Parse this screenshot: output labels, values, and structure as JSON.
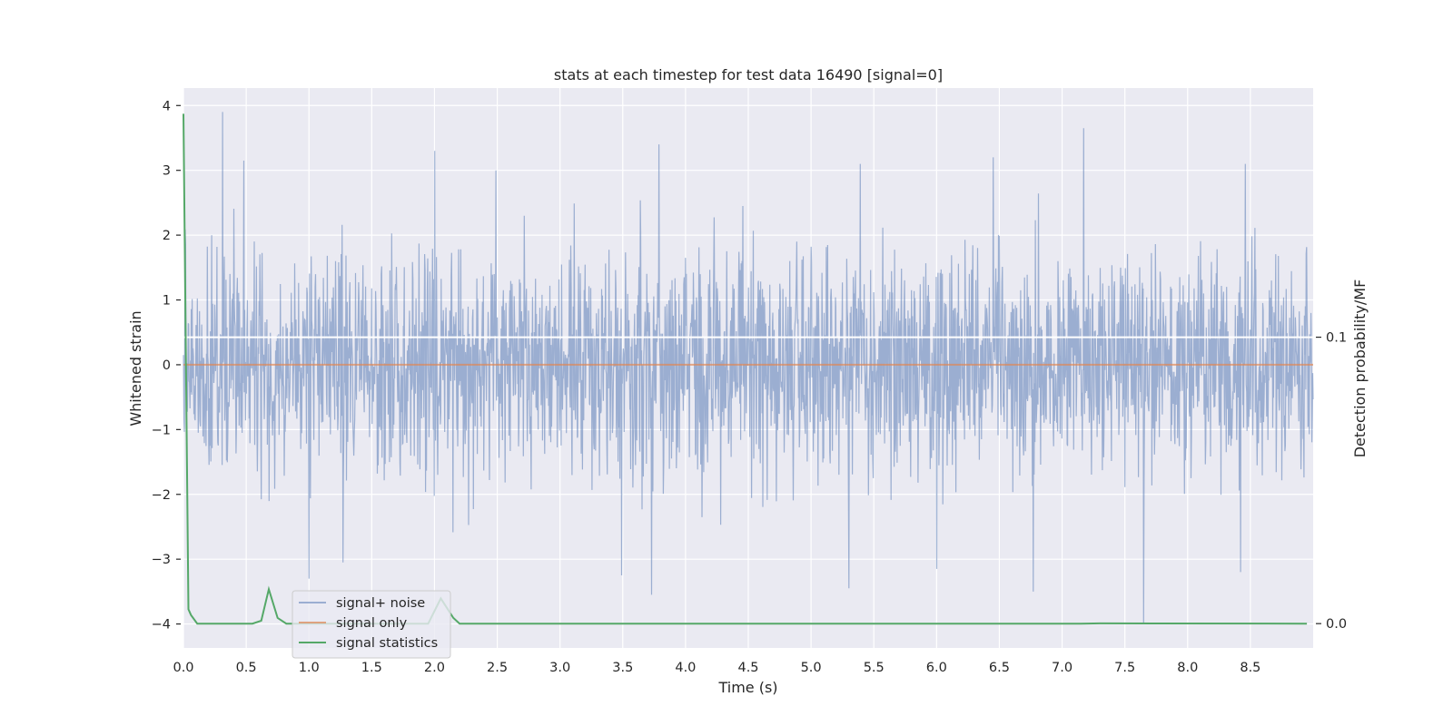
{
  "chart_data": {
    "type": "line",
    "title": "stats at each timestep for test data 16490 [signal=0]",
    "xlabel": "Time (s)",
    "ylabel": "Whitened strain",
    "y2label": "Detection probability/MF",
    "xlim": [
      0.0,
      9.0
    ],
    "ylim": [
      -4.37,
      4.27
    ],
    "y2lim": [
      -0.0085,
      0.187
    ],
    "x_ticks": [
      "0.0",
      "0.5",
      "1.0",
      "1.5",
      "2.0",
      "2.5",
      "3.0",
      "3.5",
      "4.0",
      "4.5",
      "5.0",
      "5.5",
      "6.0",
      "6.5",
      "7.0",
      "7.5",
      "8.0",
      "8.5"
    ],
    "y_ticks": [
      "4",
      "3",
      "2",
      "1",
      "0",
      "−1",
      "−2",
      "−3",
      "−4"
    ],
    "y2_ticks": [
      "0.1",
      "0.0"
    ],
    "grid": true,
    "legend_position": "lower-left",
    "colors": {
      "background": "#eaeaf2",
      "grid": "#ffffff",
      "signal_noise": "#4c72b0",
      "signal_only": "#dd8452",
      "signal_statistics": "#55a868",
      "threshold": "#ffffff"
    },
    "series": [
      {
        "name": "signal+ noise",
        "axis": "left",
        "style": "dense noise trace, approx. zero-mean, envelope about ±2.5 with spikes",
        "peaks": [
          {
            "x": 0.31,
            "y": 3.9
          },
          {
            "x": 2.0,
            "y": 3.3
          },
          {
            "x": 3.79,
            "y": 3.4
          },
          {
            "x": 6.45,
            "y": 3.2
          },
          {
            "x": 7.17,
            "y": 3.65
          },
          {
            "x": 8.46,
            "y": 3.1
          },
          {
            "x": 2.49,
            "y": 3.0
          },
          {
            "x": 5.39,
            "y": 3.1
          },
          {
            "x": 0.48,
            "y": 3.15
          }
        ],
        "troughs": [
          {
            "x": 1.0,
            "y": -3.3
          },
          {
            "x": 1.27,
            "y": -3.05
          },
          {
            "x": 3.49,
            "y": -3.25
          },
          {
            "x": 3.73,
            "y": -3.55
          },
          {
            "x": 5.3,
            "y": -3.45
          },
          {
            "x": 6.77,
            "y": -3.5
          },
          {
            "x": 7.65,
            "y": -4.0
          },
          {
            "x": 8.42,
            "y": -3.2
          },
          {
            "x": 6.0,
            "y": -3.15
          }
        ]
      },
      {
        "name": "signal only",
        "axis": "left",
        "x": [
          0.0,
          9.0
        ],
        "y": [
          0.0,
          0.0
        ]
      },
      {
        "name": "signal statistics",
        "axis": "right",
        "x": [
          0.0,
          0.04,
          0.06,
          0.11,
          0.55,
          0.62,
          0.68,
          0.75,
          0.82,
          1.95,
          2.05,
          2.15,
          2.2,
          7.15,
          7.3,
          8.95
        ],
        "y": [
          0.178,
          0.005,
          0.003,
          0.0,
          0.0,
          0.001,
          0.012,
          0.002,
          0.0,
          0.0,
          0.0088,
          0.002,
          0.0,
          0.0,
          0.0001,
          0.0
        ]
      }
    ],
    "threshold_line": {
      "axis": "right",
      "y": 0.1
    }
  }
}
